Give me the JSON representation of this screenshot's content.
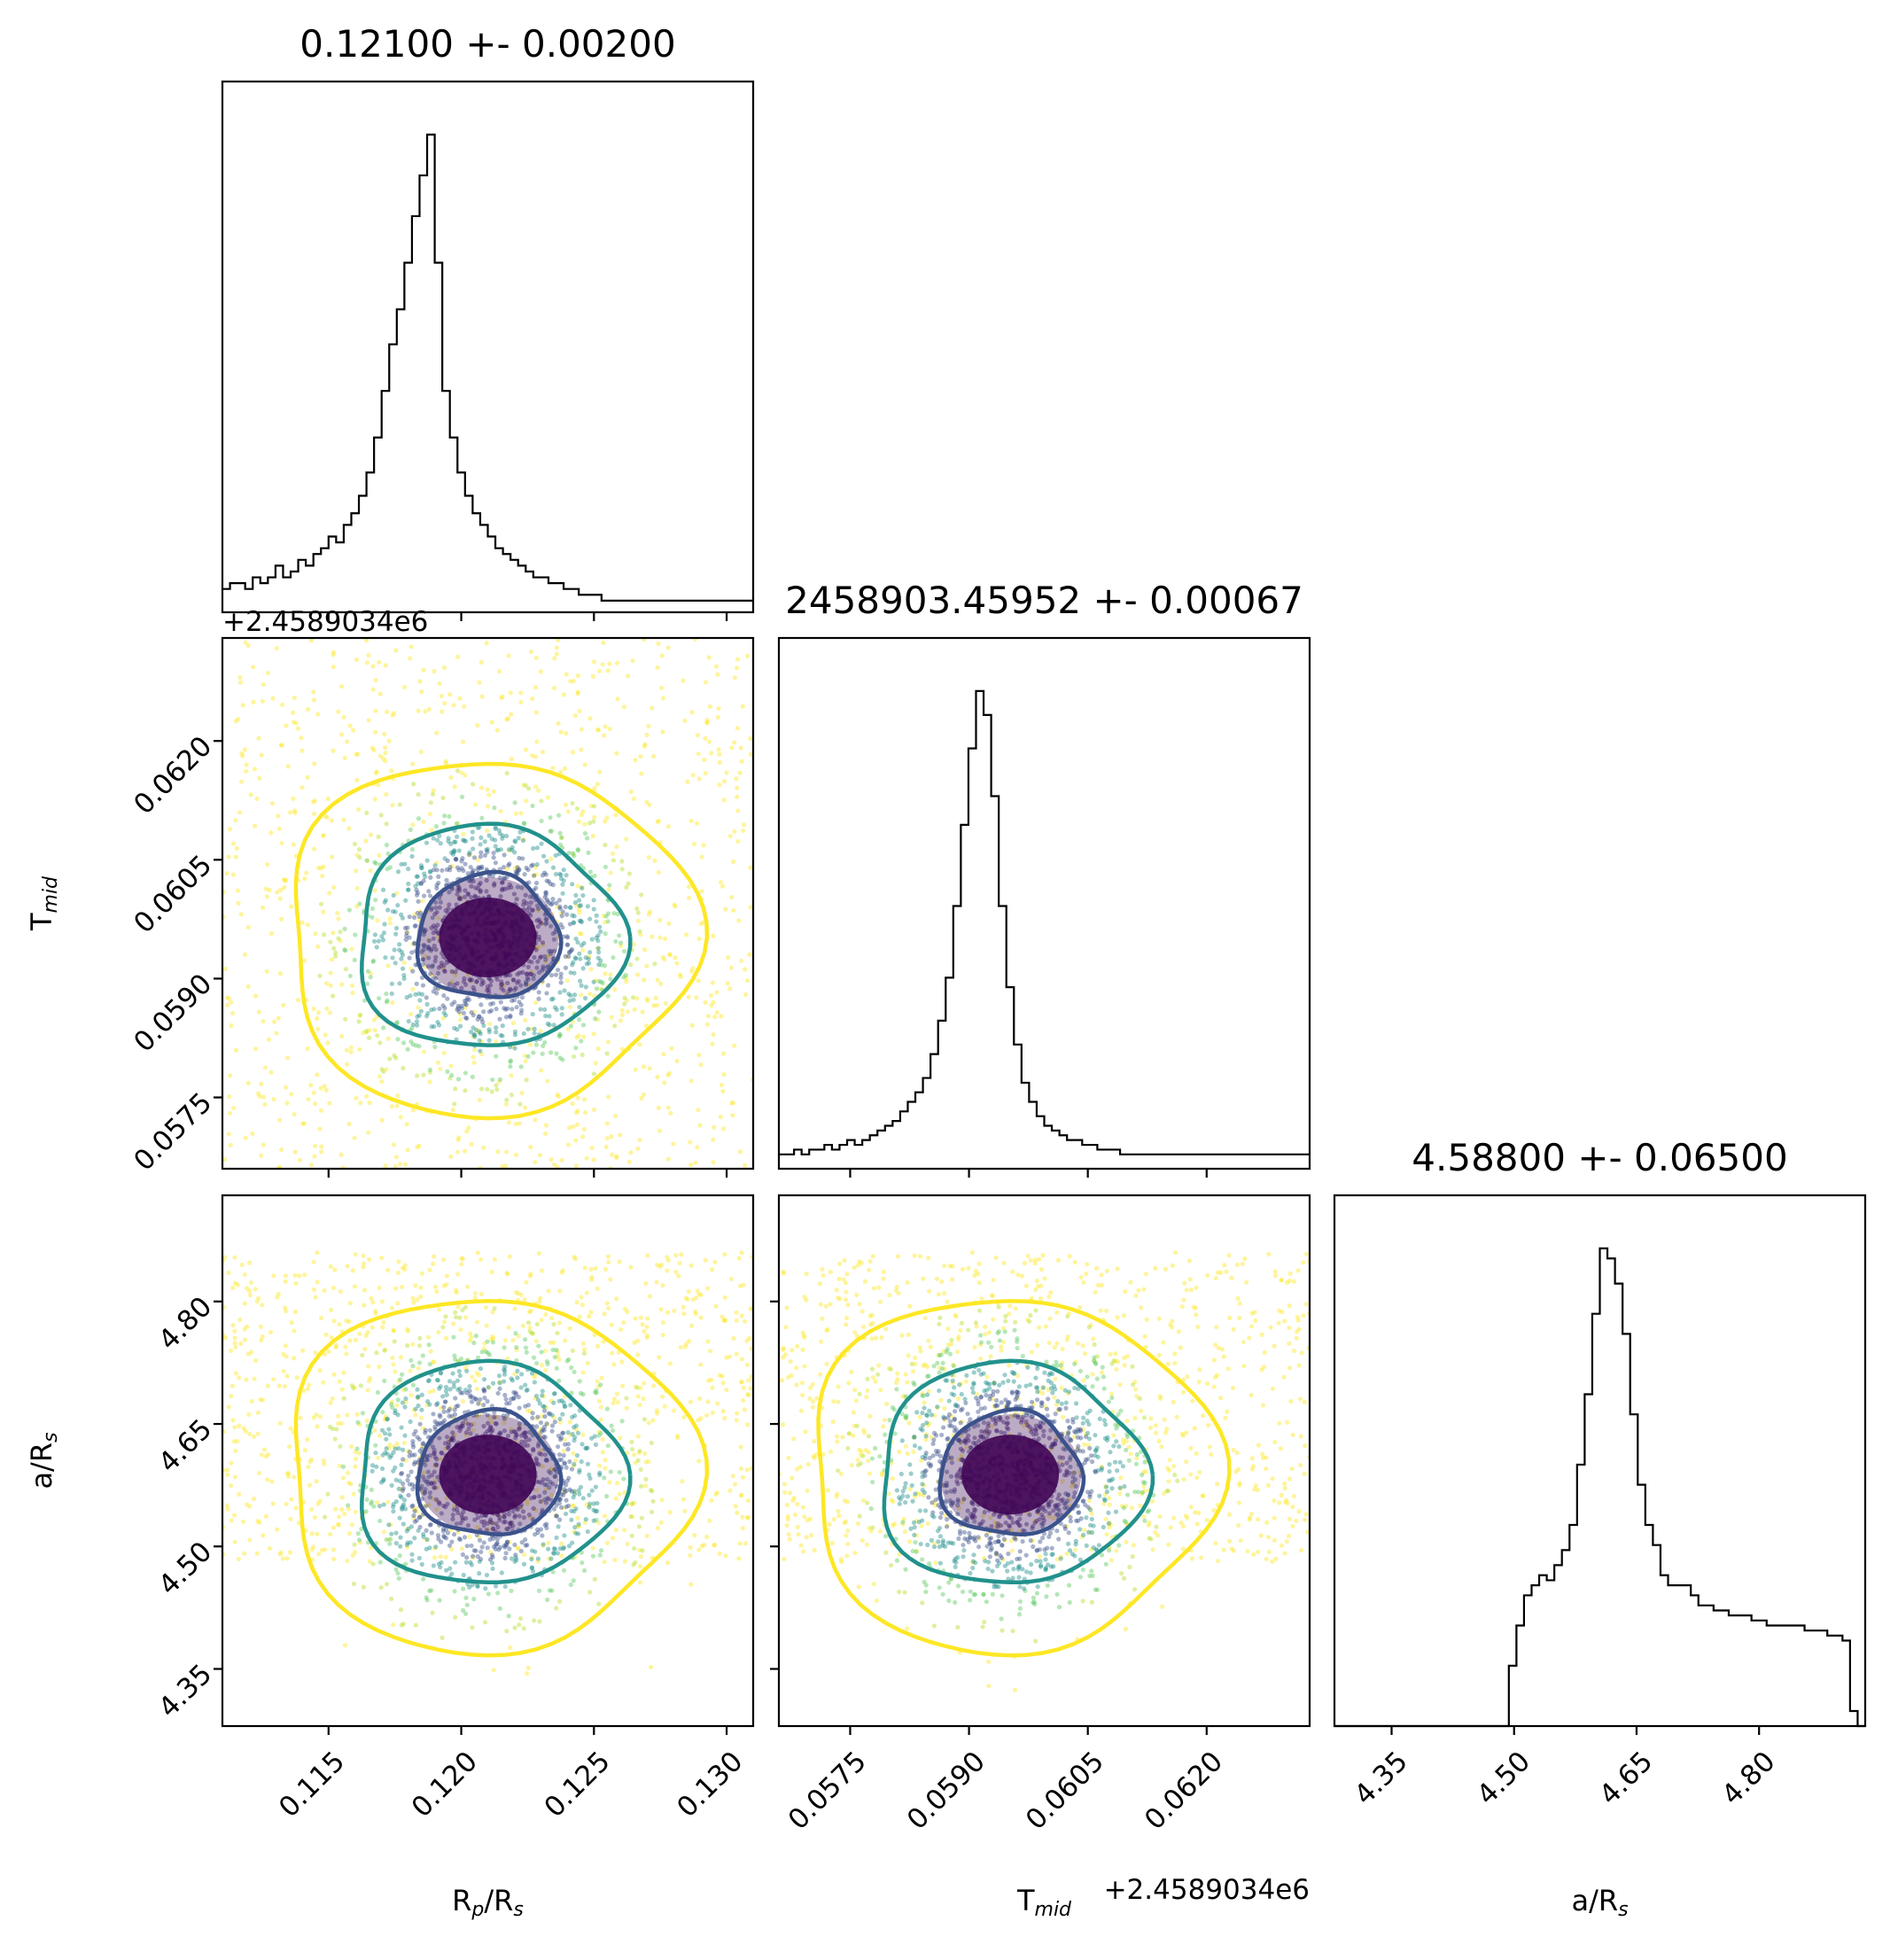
{
  "chart_data": {
    "type": "corner",
    "parameters": [
      {
        "key": "rp",
        "label": "R<sub>p</sub>/R<sub>s</sub>",
        "title": "0.12100 +- 0.00200",
        "range": [
          0.111,
          0.131
        ],
        "ticks": [
          "0.115",
          "0.120",
          "0.125",
          "0.130"
        ],
        "offset": "",
        "center": 0.121,
        "sigma": 0.002
      },
      {
        "key": "tmid",
        "label": "T<sub>mid</sub>",
        "title": "2458903.45952 +- 0.00067",
        "range": [
          0.0566,
          0.0633
        ],
        "ticks": [
          "0.0575",
          "0.0590",
          "0.0605",
          "0.0620"
        ],
        "offset": "+2.4589034e6",
        "center": 0.05952,
        "sigma": 0.00067
      },
      {
        "key": "ars",
        "label": "a/R<sub>s</sub>",
        "title": "4.58800 +- 0.06500",
        "range": [
          4.28,
          4.93
        ],
        "ticks": [
          "4.35",
          "4.50",
          "4.65",
          "4.80"
        ],
        "offset": "",
        "center": 4.588,
        "sigma": 0.065
      }
    ],
    "histograms": [
      {
        "param": "rp",
        "bins": 70,
        "counts": [
          4,
          5,
          5,
          4,
          6,
          5,
          6,
          8,
          6,
          7,
          9,
          8,
          10,
          11,
          13,
          12,
          15,
          17,
          20,
          24,
          30,
          38,
          46,
          52,
          60,
          68,
          75,
          82,
          60,
          38,
          30,
          24,
          20,
          17,
          15,
          13,
          11,
          10,
          9,
          8,
          7,
          6,
          6,
          5,
          5,
          4,
          4,
          3,
          3,
          3,
          2,
          2,
          2,
          2,
          2,
          2,
          2,
          2,
          2,
          2,
          2,
          2,
          2,
          2,
          2,
          2,
          2,
          2,
          2,
          2
        ]
      },
      {
        "param": "tmid",
        "bins": 70,
        "counts": [
          3,
          3,
          4,
          3,
          4,
          4,
          5,
          4,
          5,
          6,
          5,
          6,
          7,
          8,
          9,
          10,
          12,
          14,
          16,
          19,
          24,
          31,
          40,
          55,
          72,
          88,
          100,
          95,
          78,
          55,
          38,
          26,
          18,
          14,
          11,
          9,
          8,
          7,
          6,
          6,
          5,
          5,
          4,
          4,
          4,
          3,
          3,
          3,
          3,
          3,
          3,
          3,
          3,
          3,
          3,
          3,
          3,
          3,
          3,
          3,
          3,
          3,
          3,
          3,
          3,
          3,
          3,
          3,
          3,
          3
        ]
      },
      {
        "param": "ars",
        "bins": 70,
        "counts": [
          0,
          0,
          0,
          0,
          0,
          0,
          0,
          0,
          0,
          0,
          0,
          0,
          0,
          0,
          0,
          0,
          0,
          0,
          0,
          0,
          0,
          0,
          0,
          12,
          20,
          26,
          28,
          30,
          29,
          32,
          35,
          40,
          52,
          66,
          82,
          95,
          93,
          88,
          78,
          62,
          48,
          40,
          36,
          30,
          28,
          28,
          28,
          26,
          24,
          24,
          23,
          23,
          22,
          22,
          22,
          21,
          21,
          20,
          20,
          20,
          20,
          20,
          19,
          19,
          19,
          18,
          18,
          17,
          3,
          0
        ]
      }
    ],
    "contour_levels": [
      "0.5 sigma",
      "1 sigma",
      "2 sigma"
    ],
    "contour_colors": [
      "#3b528b",
      "#21918c",
      "#fde725"
    ],
    "scatter_colormap": "viridis",
    "grid": false,
    "legend": "none"
  }
}
